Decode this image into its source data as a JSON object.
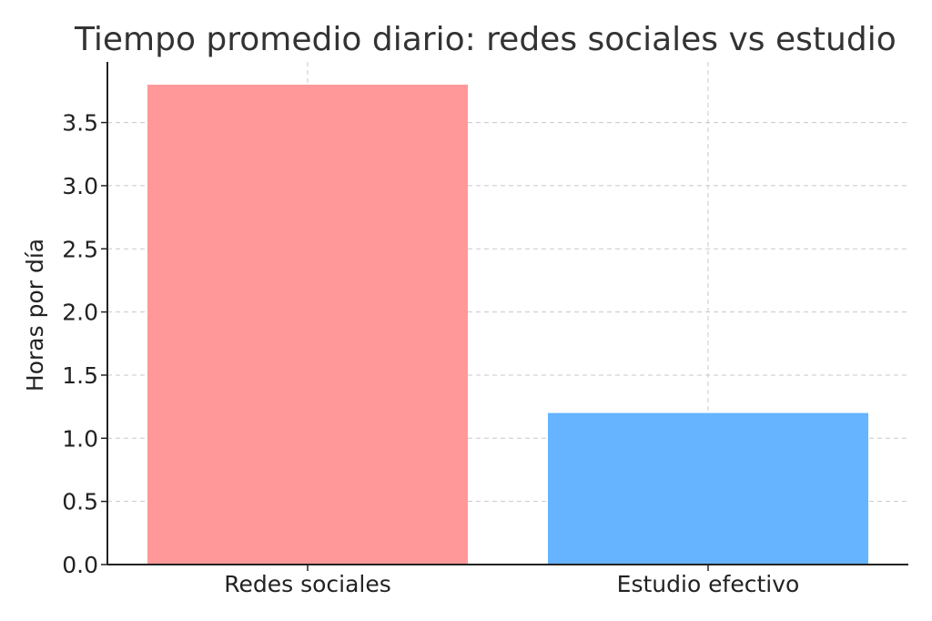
{
  "chart_data": {
    "type": "bar",
    "title": "Tiempo promedio diario: redes sociales vs estudio",
    "xlabel": "",
    "ylabel": "Horas por día",
    "categories": [
      "Redes sociales",
      "Estudio efectivo"
    ],
    "values": [
      3.8,
      1.2
    ],
    "ylim": [
      0,
      3.98
    ],
    "yticks": [
      0.0,
      0.5,
      1.0,
      1.5,
      2.0,
      2.5,
      3.0,
      3.5
    ],
    "ytick_labels": [
      "0.0",
      "0.5",
      "1.0",
      "1.5",
      "2.0",
      "2.5",
      "3.0",
      "3.5"
    ],
    "colors": [
      "#ff9999",
      "#66b3ff"
    ],
    "grid": true,
    "legend": false
  }
}
